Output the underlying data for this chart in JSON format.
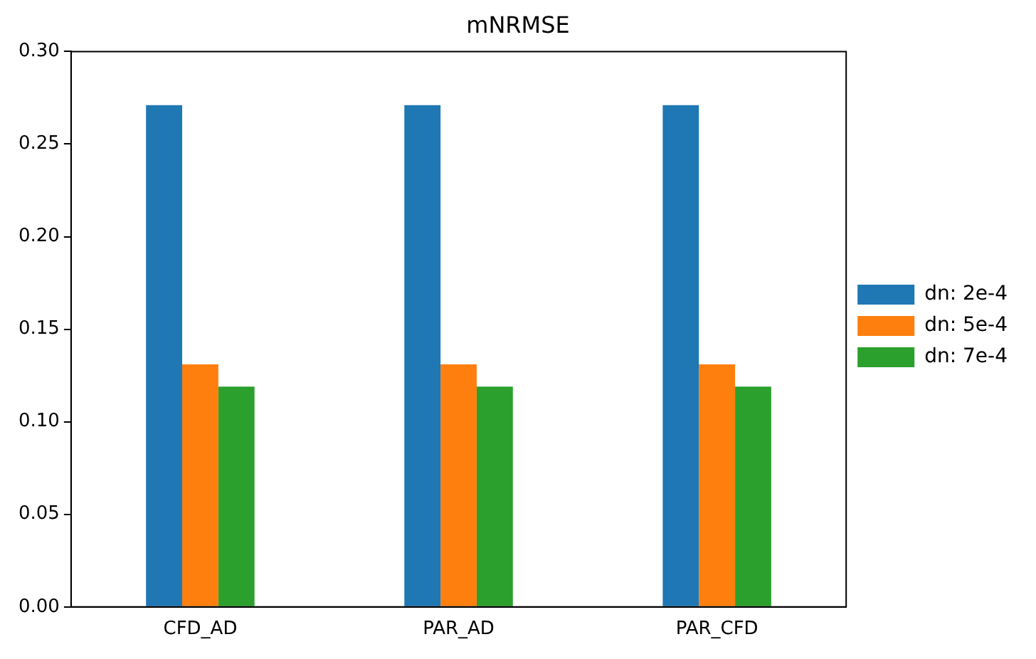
{
  "chart_data": {
    "type": "bar",
    "title": "mNRMSE",
    "categories": [
      "CFD_AD",
      "PAR_AD",
      "PAR_CFD"
    ],
    "series": [
      {
        "name": "dn: 2e-4",
        "color": "#1f77b4",
        "values": [
          0.271,
          0.271,
          0.271
        ]
      },
      {
        "name": "dn: 5e-4",
        "color": "#ff7f0e",
        "values": [
          0.131,
          0.131,
          0.131
        ]
      },
      {
        "name": "dn: 7e-4",
        "color": "#2ca02c",
        "values": [
          0.119,
          0.119,
          0.119
        ]
      }
    ],
    "ylim": [
      0,
      0.3
    ],
    "yticks": [
      {
        "value": 0,
        "label": "0.00"
      },
      0.05,
      {
        "value": 0.1,
        "label": "0.10"
      },
      0.15,
      {
        "value": 0.2,
        "label": "0.20"
      },
      0.25,
      {
        "value": 0.3,
        "label": "0.30"
      }
    ],
    "grid": false,
    "legend": "right"
  }
}
